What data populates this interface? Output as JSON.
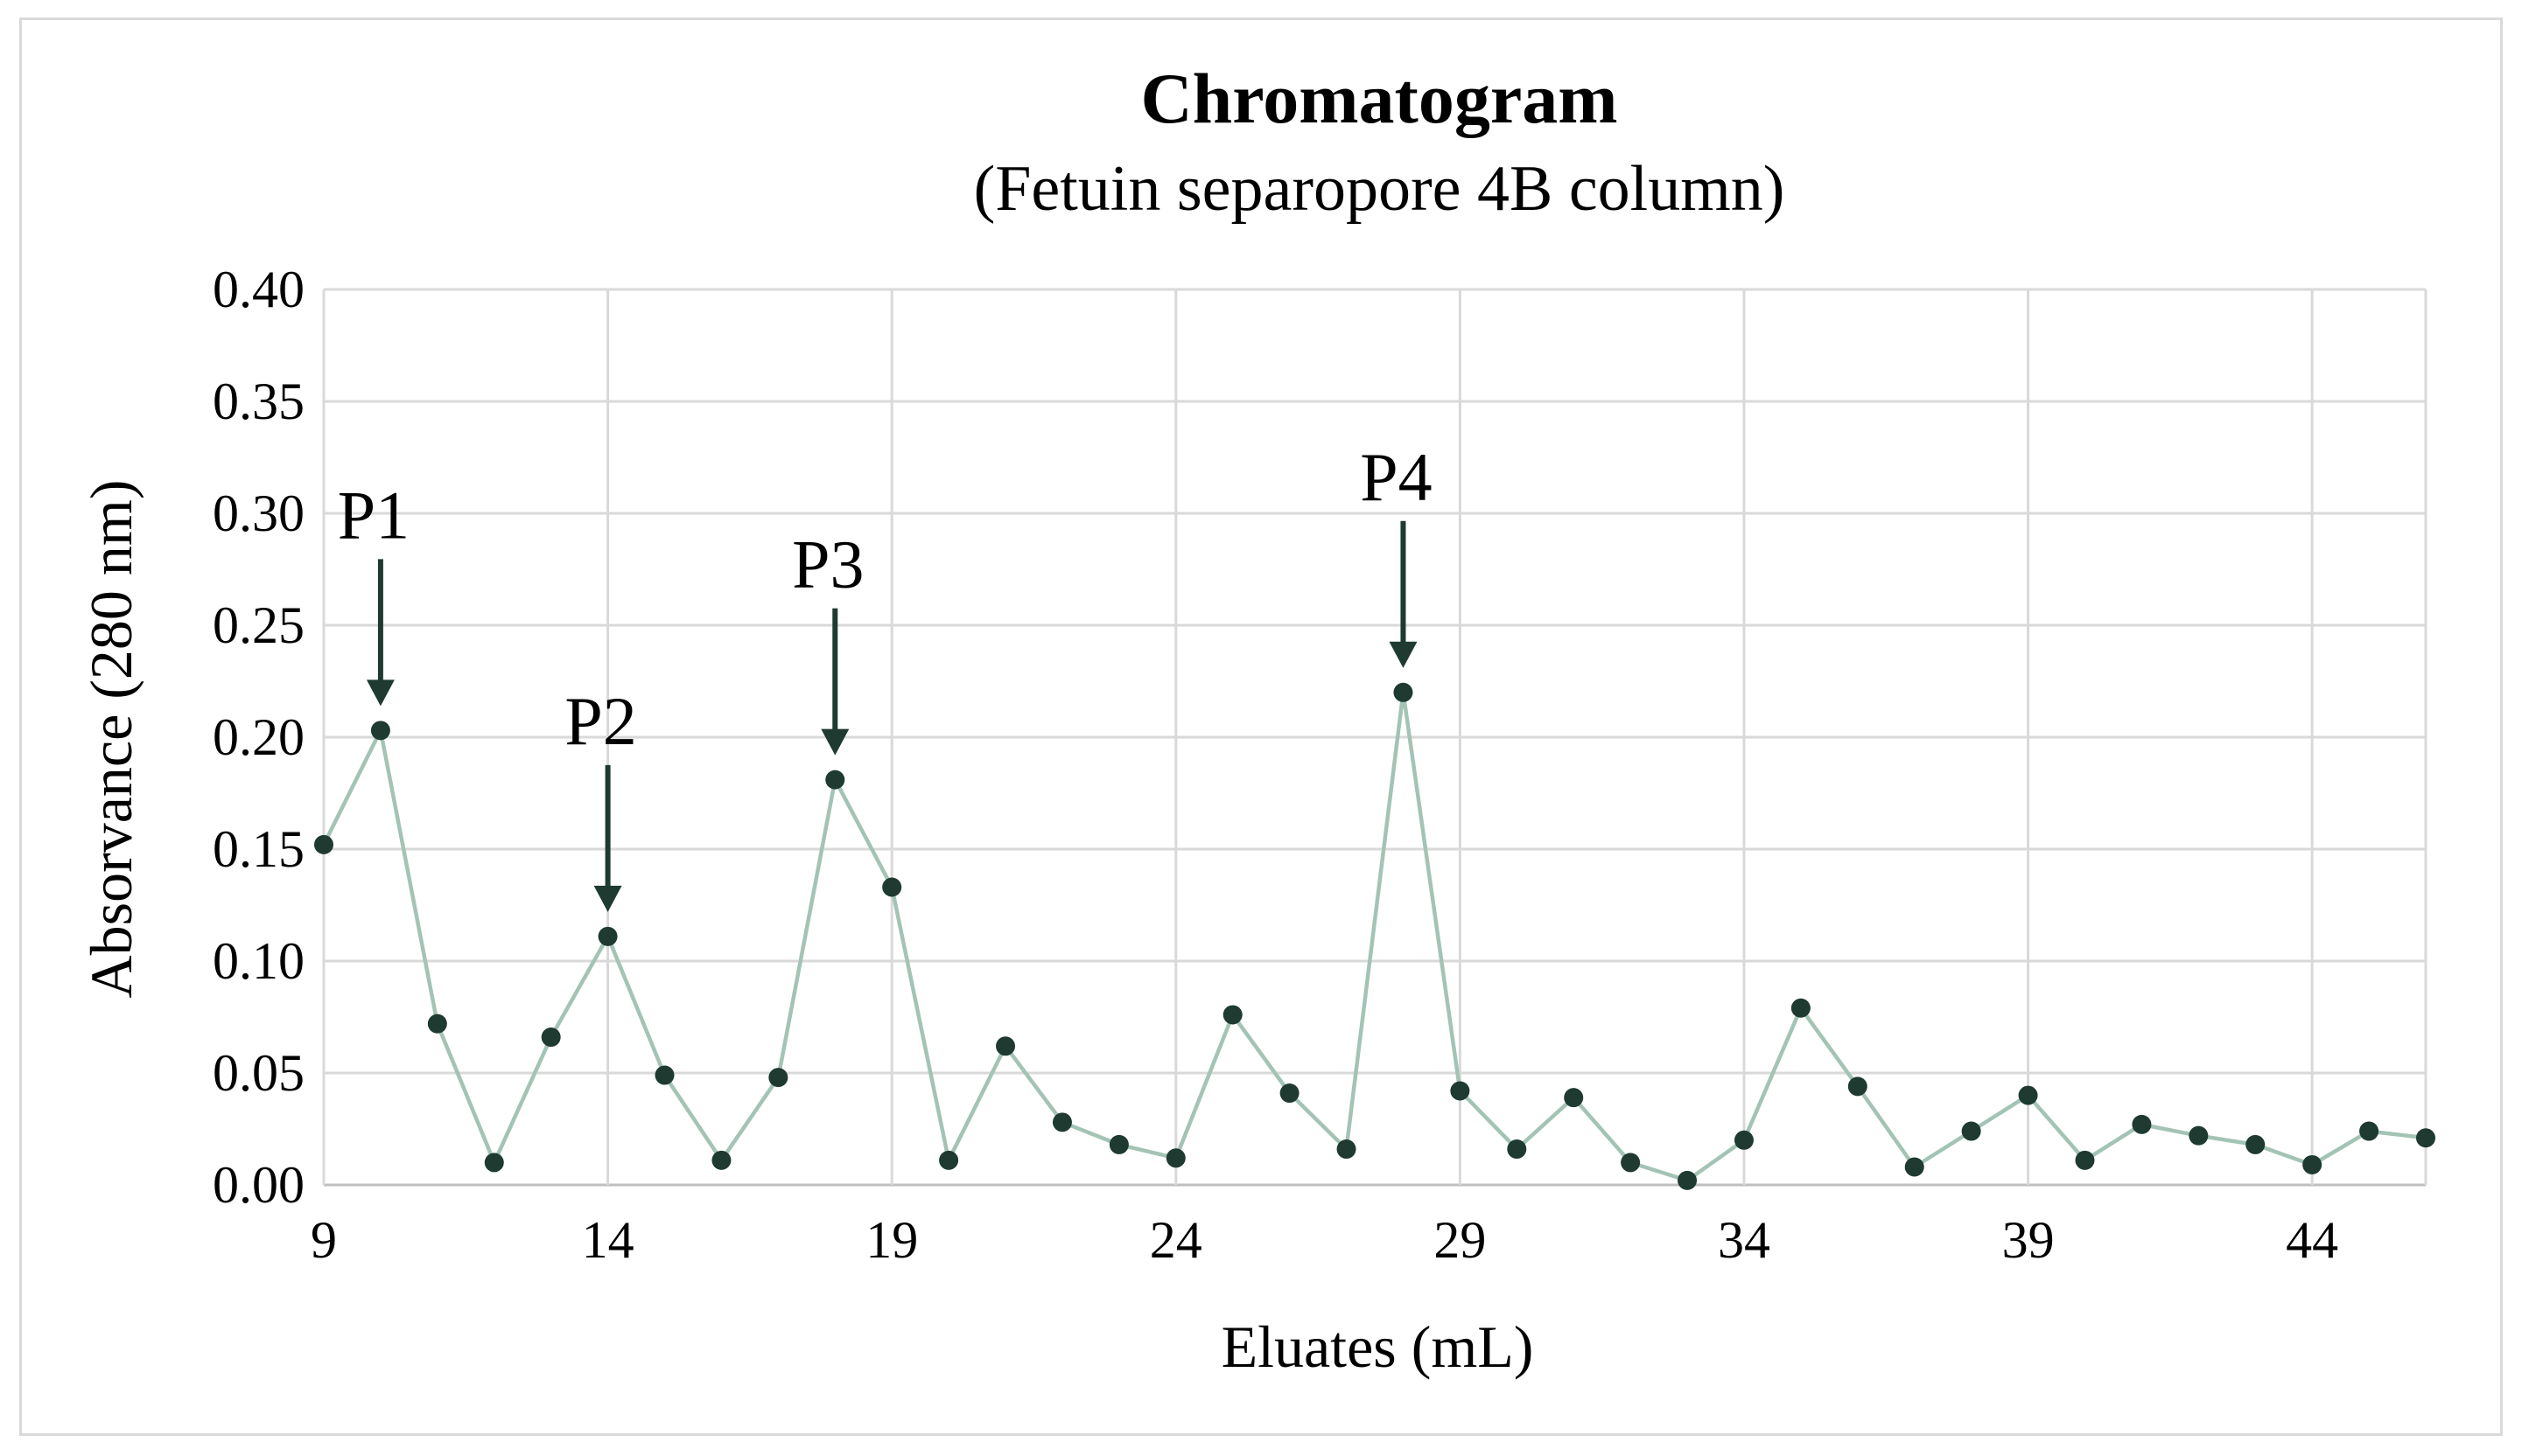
{
  "chart_data": {
    "type": "line",
    "title": "Chromatogram",
    "subtitle": "(Fetuin separopore 4B column)",
    "xlabel": "Eluates (mL)",
    "ylabel": "Absorvance (280 nm)",
    "xlim": [
      9,
      46
    ],
    "ylim": [
      0,
      0.4
    ],
    "xticks": [
      "9",
      "14",
      "19",
      "24",
      "29",
      "34",
      "39",
      "44"
    ],
    "yticks": [
      "0.00",
      "0.05",
      "0.10",
      "0.15",
      "0.20",
      "0.25",
      "0.30",
      "0.35",
      "0.40"
    ],
    "grid": true,
    "legend": "none",
    "colors": {
      "line": "#a3c4b5",
      "marker": "#1e3a31",
      "arrow": "#1e3a31"
    },
    "series": [
      {
        "x": [
          9,
          10,
          11,
          12,
          13,
          14,
          15,
          16,
          17,
          18,
          19,
          20,
          21,
          22,
          23,
          24,
          25,
          26,
          27,
          28,
          29,
          30,
          31,
          32,
          33,
          34,
          35,
          36,
          37,
          38,
          39,
          40,
          41,
          42,
          43,
          44,
          45,
          46
        ],
        "values": [
          0.152,
          0.203,
          0.072,
          0.01,
          0.066,
          0.111,
          0.049,
          0.011,
          0.048,
          0.181,
          0.133,
          0.011,
          0.062,
          0.028,
          0.018,
          0.012,
          0.076,
          0.041,
          0.016,
          0.22,
          0.042,
          0.016,
          0.039,
          0.01,
          0.002,
          0.02,
          0.079,
          0.044,
          0.008,
          0.024,
          0.04,
          0.011,
          0.027,
          0.022,
          0.018,
          0.009,
          0.024,
          0.021
        ]
      }
    ],
    "annotations": [
      {
        "text": "P1",
        "x": 10,
        "y": 0.203
      },
      {
        "text": "P2",
        "x": 14,
        "y": 0.111
      },
      {
        "text": "P3",
        "x": 18,
        "y": 0.181
      },
      {
        "text": "P4",
        "x": 28,
        "y": 0.22
      }
    ]
  }
}
